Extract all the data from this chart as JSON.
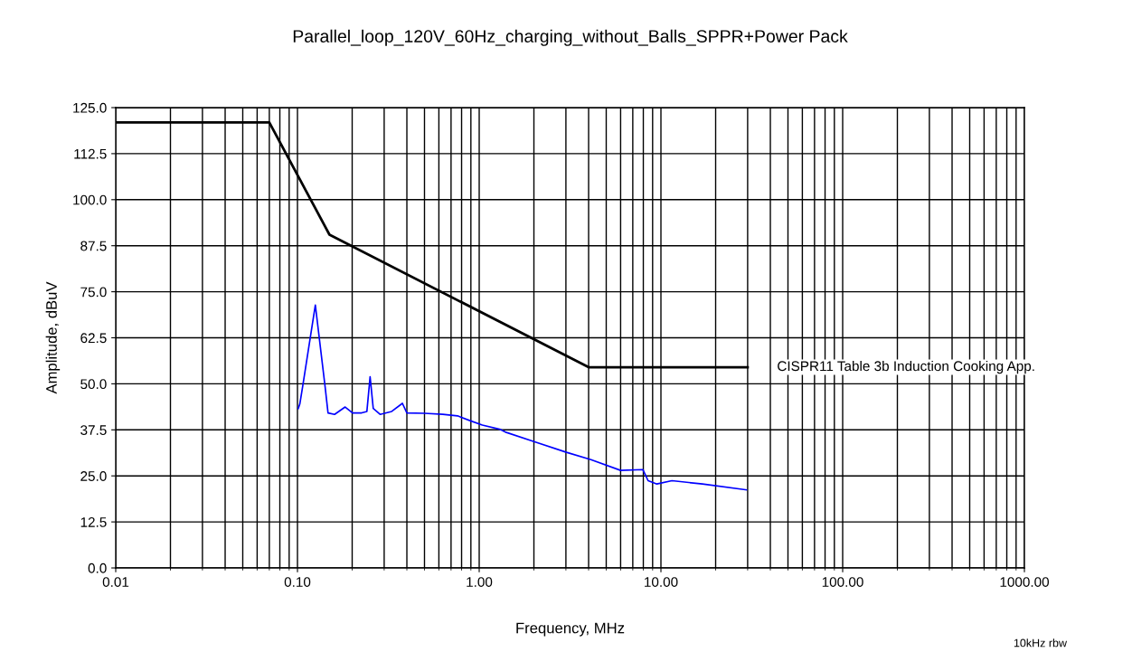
{
  "chart_data": {
    "type": "line",
    "title": "Parallel_loop_120V_60Hz_charging_without_Balls_SPPR+Power Pack",
    "xlabel": "Frequency, MHz",
    "ylabel": "Amplitude, dBuV",
    "log": "x",
    "grid": true,
    "legend": false,
    "marker": "none",
    "line_style": "solid",
    "xlim": [
      0.01,
      1000
    ],
    "xticks": [
      {
        "value": 0.01,
        "label": "0.01"
      },
      {
        "value": 0.1,
        "label": "0.10"
      },
      {
        "value": 1,
        "label": "1.00"
      },
      {
        "value": 10,
        "label": "10.00"
      },
      {
        "value": 100,
        "label": "100.00"
      },
      {
        "value": 1000,
        "label": "1000.00"
      }
    ],
    "ylim": [
      0,
      125
    ],
    "yticks": [
      {
        "value": 0,
        "label": "0.0"
      },
      {
        "value": 12.5,
        "label": "12.5"
      },
      {
        "value": 25,
        "label": "25.0"
      },
      {
        "value": 37.5,
        "label": "37.5"
      },
      {
        "value": 50,
        "label": "50.0"
      },
      {
        "value": 62.5,
        "label": "62.5"
      },
      {
        "value": 75,
        "label": "75.0"
      },
      {
        "value": 87.5,
        "label": "87.5"
      },
      {
        "value": 100,
        "label": "100.0"
      },
      {
        "value": 112.5,
        "label": "112.5"
      },
      {
        "value": 125,
        "label": "125.0"
      }
    ],
    "series": [
      {
        "name": "CISPR11 Table 3b Induction Cooking App.",
        "color": "#000000",
        "x": [
          0.01,
          0.07,
          0.15,
          4,
          30
        ],
        "values": [
          121,
          121,
          90.5,
          54.5,
          54.5
        ]
      },
      {
        "color": "#0000ff",
        "x": [
          0.101,
          0.103,
          0.107,
          0.1254,
          0.1417,
          0.1473,
          0.16,
          0.183,
          0.201,
          0.2256,
          0.241,
          0.251,
          0.2612,
          0.2848,
          0.33,
          0.378,
          0.4,
          0.5,
          0.63,
          0.76,
          0.89,
          1.04,
          1.31,
          1.41,
          2.0,
          3.02,
          4.12,
          6.0,
          7.96,
          8.5,
          9.5,
          11.5,
          16.9,
          29.5
        ],
        "values": [
          43.3,
          44.5,
          49.5,
          71.4,
          49.5,
          42.1,
          41.7,
          43.7,
          42.1,
          42.1,
          42.5,
          51.9,
          43.3,
          41.7,
          42.5,
          44.7,
          42.1,
          42,
          41.7,
          41.3,
          40,
          38.8,
          37.6,
          36.8,
          34.3,
          31.4,
          29.4,
          26.5,
          26.7,
          23.7,
          22.8,
          23.7,
          22.8,
          21.2
        ]
      }
    ],
    "annotations": [
      "10kHz rbw"
    ]
  }
}
